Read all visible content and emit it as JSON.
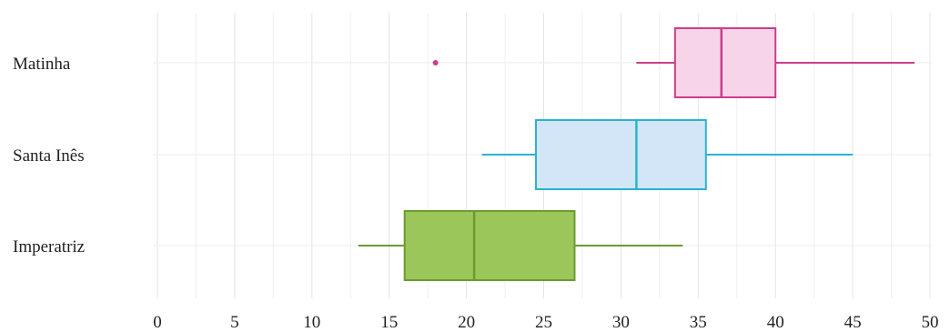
{
  "chart_data": {
    "type": "boxplot",
    "orientation": "horizontal",
    "categories": [
      "Matinha",
      "Santa Inês",
      "Imperatriz"
    ],
    "series": [
      {
        "category": "Matinha",
        "whisker_low": 31,
        "q1": 33.5,
        "median": 36.5,
        "q3": 40,
        "whisker_high": 49,
        "outliers": [
          18
        ],
        "stroke_color": "#cc3d8a",
        "fill_color": "#f7d4e8"
      },
      {
        "category": "Santa Inês",
        "whisker_low": 21,
        "q1": 24.5,
        "median": 31,
        "q3": 35.5,
        "whisker_high": 45,
        "outliers": [],
        "stroke_color": "#2bb3d0",
        "fill_color": "#d3e6f7"
      },
      {
        "category": "Imperatriz",
        "whisker_low": 13,
        "q1": 16,
        "median": 20.5,
        "q3": 27,
        "whisker_high": 34,
        "outliers": [],
        "stroke_color": "#6d9a2f",
        "fill_color": "#9bc75a"
      }
    ],
    "x_ticks": [
      0,
      5,
      10,
      15,
      20,
      25,
      30,
      35,
      40,
      45,
      50
    ],
    "xlim": [
      0,
      50
    ],
    "grid": true,
    "minor_grid_step": 2.5,
    "title": "",
    "xlabel": "",
    "ylabel": ""
  }
}
